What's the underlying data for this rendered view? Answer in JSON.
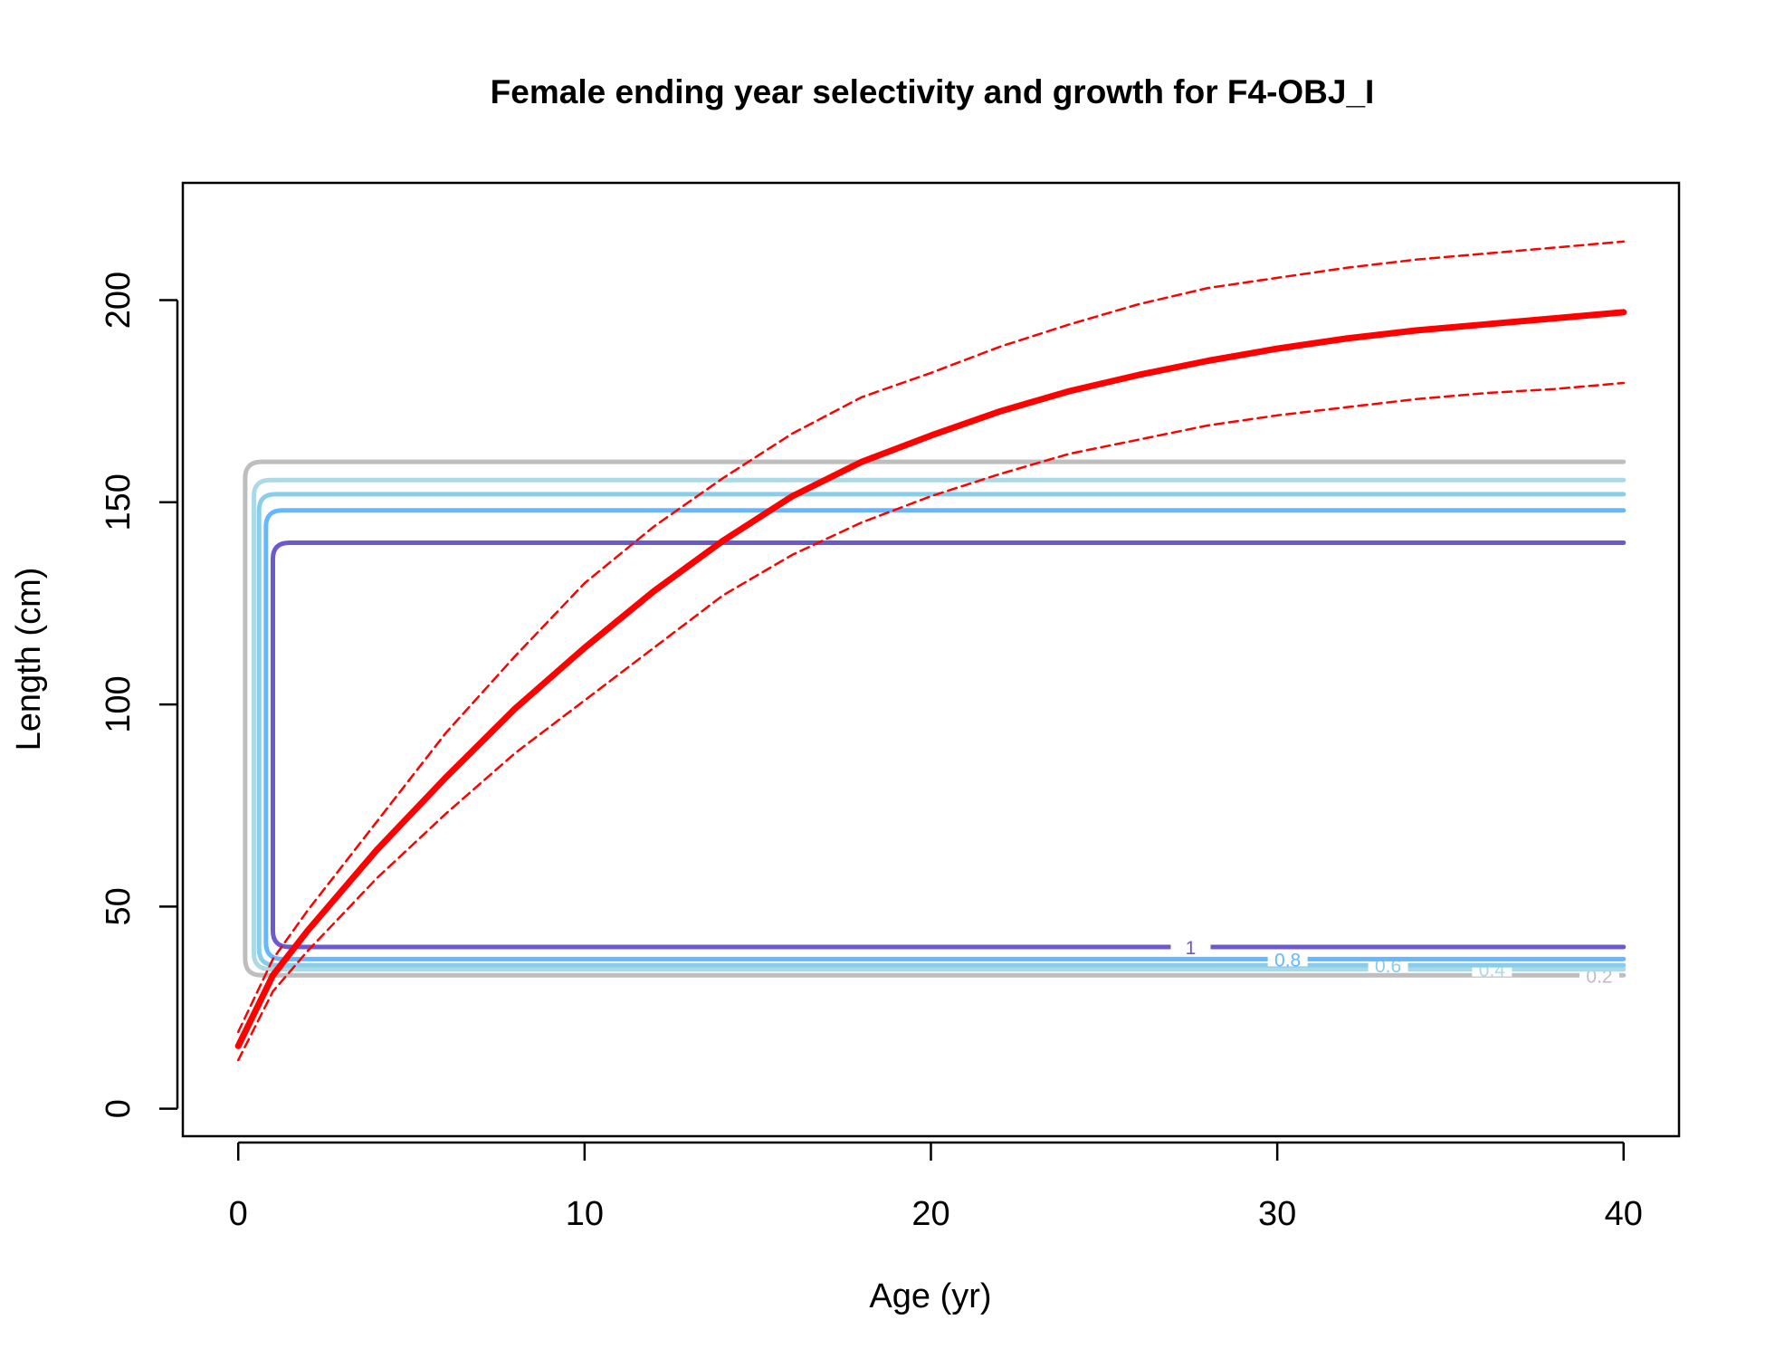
{
  "chart_data": {
    "type": "line",
    "title": "Female ending year selectivity and growth for F4-OBJ_I",
    "xlabel": "Age (yr)",
    "ylabel": "Length (cm)",
    "xlim": [
      -1.6,
      41.6
    ],
    "ylim": [
      -6.8,
      229
    ],
    "x_ticks": [
      0,
      10,
      20,
      30,
      40
    ],
    "x_tick_labels": [
      "0",
      "10",
      "20",
      "30",
      "40"
    ],
    "y_ticks": [
      0,
      50,
      100,
      150,
      200
    ],
    "y_tick_labels": [
      "0",
      "50",
      "100",
      "150",
      "200"
    ],
    "grid": false,
    "legend": "none",
    "series": [
      {
        "style": "solid-thick",
        "color": "#ff0000",
        "x": [
          0,
          1,
          2,
          4,
          6,
          8,
          10,
          12,
          14,
          16,
          18,
          20,
          22,
          24,
          26,
          28,
          30,
          32,
          34,
          36,
          38,
          40
        ],
        "y": [
          15.5,
          33,
          44,
          64,
          82,
          99,
          114,
          128,
          140.5,
          151.5,
          160,
          166.5,
          172.5,
          177.5,
          181.5,
          185,
          188,
          190.5,
          192.5,
          194,
          195.5,
          197
        ]
      },
      {
        "style": "dashed",
        "color": "#ff0000",
        "x": [
          0,
          1,
          2,
          4,
          6,
          8,
          10,
          12,
          14,
          16,
          18,
          20,
          22,
          24,
          26,
          28,
          30,
          32,
          34,
          36,
          38,
          40
        ],
        "y": [
          19,
          37,
          49,
          71,
          93,
          112,
          130,
          144,
          156,
          167,
          176,
          182,
          188.5,
          194,
          199,
          203,
          205.5,
          208,
          210,
          211.5,
          213,
          214.5
        ]
      },
      {
        "style": "dashed",
        "color": "#ff0000",
        "x": [
          0,
          1,
          2,
          4,
          6,
          8,
          10,
          12,
          14,
          16,
          18,
          20,
          22,
          24,
          26,
          28,
          30,
          32,
          34,
          36,
          38,
          40
        ],
        "y": [
          12,
          29,
          39,
          57,
          73,
          88,
          101,
          114,
          127,
          137,
          145,
          151.5,
          157,
          162,
          165.5,
          169,
          171.5,
          173.5,
          175.5,
          177,
          178,
          179.5
        ]
      }
    ],
    "contours": [
      {
        "level": "0.2",
        "color": "#bebebe",
        "x_left": 0.2,
        "y_bottom": 33,
        "y_top": 160,
        "label_x": 39.3
      },
      {
        "level": "0.4",
        "color": "#add8e6",
        "x_left": 0.45,
        "y_bottom": 34.5,
        "y_top": 155.5,
        "label_x": 36.2
      },
      {
        "level": "0.6",
        "color": "#87ceeb",
        "x_left": 0.6,
        "y_bottom": 35.5,
        "y_top": 152,
        "label_x": 33.2
      },
      {
        "level": "0.8",
        "color": "#63b8ff",
        "x_left": 0.8,
        "y_bottom": 37,
        "y_top": 148,
        "label_x": 30.3
      },
      {
        "level": "1",
        "color": "#6a5acd",
        "x_left": 1,
        "y_bottom": 40,
        "y_top": 140,
        "label_x": 27.5
      }
    ]
  }
}
